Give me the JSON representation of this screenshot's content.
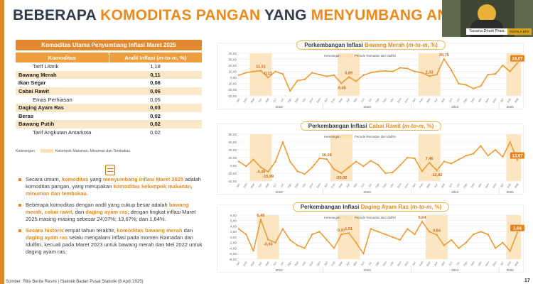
{
  "title": {
    "part1": "BEBERAPA ",
    "part2": "KOMODITAS PANGAN",
    "part3": " YANG ",
    "part4": "MENYUMBANG ANDIL INFLASI"
  },
  "video": {
    "name": "Sasana Dharti Praia",
    "tag": "KEPALA BPS"
  },
  "table": {
    "header": "Komoditas Utama Penyumbang Inflasi Maret 2025",
    "col1": "Komoditas",
    "col2_main": "Andil Inflasi (",
    "col2_unit": "m-to-m",
    "col2_end": ", %)",
    "rows": [
      {
        "name": "Tarif Listrik",
        "value": "1,18",
        "bold": false
      },
      {
        "name": "Bawang Merah",
        "value": "0,11",
        "bold": true
      },
      {
        "name": "Ikan Segar",
        "value": "0,06",
        "bold": true
      },
      {
        "name": "Cabai Rawit",
        "value": "0,06",
        "bold": true
      },
      {
        "name": "Emas Perhiasan",
        "value": "0,05",
        "bold": false
      },
      {
        "name": "Daging Ayam Ras",
        "value": "0,03",
        "bold": true
      },
      {
        "name": "Beras",
        "value": "0,02",
        "bold": true
      },
      {
        "name": "Bawang Putih",
        "value": "0,02",
        "bold": true
      },
      {
        "name": "Tarif Angkutan Antarkota",
        "value": "0,02",
        "bold": false
      }
    ],
    "legend_label": "Keterangan",
    "legend_text": "Kelompok Makanan, Minuman dan Tembakau"
  },
  "bullets": [
    [
      {
        "t": "Secara umum, "
      },
      {
        "t": "komoditas",
        "h": true
      },
      {
        "t": " yang "
      },
      {
        "t": "menyumbang inflasi Maret 2025",
        "h": true
      },
      {
        "t": " adalah komoditas pangan, yang merupakan "
      },
      {
        "t": "komoditas kelompok makanan, minuman dan tembakau.",
        "h": true
      }
    ],
    [
      {
        "t": "Beberapa komoditas dengan andil yang cukup besar adalah "
      },
      {
        "t": "bawang merah",
        "h": true
      },
      {
        "t": ", "
      },
      {
        "t": "cabai rawit",
        "h": true
      },
      {
        "t": ", dan "
      },
      {
        "t": "daging ayam ras",
        "h": true
      },
      {
        "t": "; dengan tingkat inflasi Maret 2025 masing-masing sebesar 24,07%; 13,67%; dan 1,64%."
      }
    ],
    [
      {
        "t": "Secara historis",
        "h": true
      },
      {
        "t": " empat tahun terakhir, "
      },
      {
        "t": "komoditas bawang merah",
        "h": true
      },
      {
        "t": " dan "
      },
      {
        "t": "daging ayam ras",
        "h": true
      },
      {
        "t": " selalu mengalami inflasi pada momen Ramadan dan Idulfitri, kecuali pada Maret 2023 untuk bawang merah dan Mei 2022 untuk daging ayam ras."
      }
    ]
  ],
  "footer": "Sumber: Rilis Berita Resmi | Statistik Badan Pusat Statistik (8 April 2025)",
  "page_number": "17",
  "chart_data": [
    {
      "type": "line",
      "title_prefix": "Perkembangan Inflasi ",
      "title_commodity": "Bawang Merah",
      "title_unit": "m-to-m",
      "title_suffix": ", %)",
      "legend_label": "Keterangan",
      "legend_text": "Periode Ramadan dan Idulfitri",
      "x": [
        "Jan",
        "Feb",
        "Mar",
        "Apr",
        "Mei",
        "Jun",
        "Jul",
        "Agu",
        "Sep",
        "Okt",
        "Nov",
        "Des",
        "Jan",
        "Feb",
        "Mar",
        "Apr",
        "Mei",
        "Jun",
        "Jul",
        "Agu",
        "Sep",
        "Okt",
        "Nov",
        "Des",
        "Jan",
        "Feb",
        "Mar",
        "Apr",
        "Mei",
        "Jun",
        "Jul",
        "Agu",
        "Sep",
        "Okt",
        "Nov",
        "Des",
        "Jan",
        "Feb",
        "Mar"
      ],
      "years": [
        "2022",
        "2023",
        "2024",
        "2025"
      ],
      "ylim": [
        -30,
        40
      ],
      "yticks": [
        "40,00",
        "30,00",
        "20,00",
        "10,00",
        "0,00",
        "-10,00",
        "-20,00",
        "-30,00"
      ],
      "values": [
        4,
        8,
        10,
        11.31,
        0.13,
        10,
        6,
        -22,
        -5,
        -3,
        8,
        5,
        2,
        4,
        -9.45,
        0.89,
        -6,
        4,
        8,
        10,
        11,
        10,
        16,
        15,
        10,
        8,
        2.33,
        5,
        30.75,
        12,
        -10,
        -12,
        -18,
        -14,
        5,
        6,
        20,
        10,
        24.07
      ],
      "labels": [
        {
          "i": 3,
          "text": "11,31"
        },
        {
          "i": 4,
          "text": "0,13"
        },
        {
          "i": 14,
          "text": "-9,45"
        },
        {
          "i": 15,
          "text": "0,89"
        },
        {
          "i": 26,
          "text": "2,33"
        },
        {
          "i": 28,
          "text": "30,75"
        },
        {
          "i": 38,
          "text": "24,07",
          "boxed": true
        }
      ],
      "highlights": [
        [
          2,
          4
        ],
        [
          14,
          16
        ],
        [
          25,
          27
        ],
        [
          37,
          38
        ]
      ]
    },
    {
      "type": "line",
      "title_prefix": "Perkembangan Inflasi ",
      "title_commodity": "Cabai Rawit",
      "title_unit": "m-to-m",
      "title_suffix": ", %)",
      "legend_label": "Keterangan",
      "legend_text": "Periode Ramadan dan Idulfitri",
      "x": [
        "Jan",
        "Feb",
        "Mar",
        "Apr",
        "Mei",
        "Jun",
        "Jul",
        "Agu",
        "Sep",
        "Okt",
        "Nov",
        "Des",
        "Jan",
        "Feb",
        "Mar",
        "Apr",
        "Mei",
        "Jun",
        "Jul",
        "Agu",
        "Sep",
        "Okt",
        "Nov",
        "Des",
        "Jan",
        "Feb",
        "Mar",
        "Apr",
        "Mei",
        "Jun",
        "Jul",
        "Agu",
        "Sep",
        "Okt",
        "Nov",
        "Des",
        "Jan",
        "Feb",
        "Mar"
      ],
      "years": [
        "2022",
        "2023",
        "2024",
        "2025"
      ],
      "ylim": [
        -40,
        80
      ],
      "yticks": [
        "80,00",
        "60,00",
        "40,00",
        "20,00",
        "0,00",
        "-20,00",
        "-40,00"
      ],
      "values": [
        10,
        -2,
        15,
        -4.46,
        -15.99,
        10,
        60,
        10,
        -15,
        -22,
        -5,
        18,
        16.08,
        -10,
        -20.02,
        -5,
        10,
        -2,
        12,
        2,
        -20,
        -18,
        0,
        20,
        18,
        -15,
        7.46,
        -12.82,
        10,
        5,
        15,
        25,
        30,
        50,
        25,
        40,
        22,
        60,
        13.67
      ],
      "labels": [
        {
          "i": 3,
          "text": "-4,46"
        },
        {
          "i": 4,
          "text": "-15,99"
        },
        {
          "i": 12,
          "text": "16,08"
        },
        {
          "i": 14,
          "text": "-20,02"
        },
        {
          "i": 26,
          "text": "7,46"
        },
        {
          "i": 27,
          "text": "-12,82"
        },
        {
          "i": 38,
          "text": "13,67",
          "boxed": true
        }
      ],
      "highlights": [
        [
          2,
          4
        ],
        [
          13,
          15
        ],
        [
          25,
          27
        ],
        [
          37,
          38
        ]
      ]
    },
    {
      "type": "line",
      "title_prefix": "Perkembangan Inflasi ",
      "title_commodity": "Daging Ayam Ras",
      "title_unit": "m-to-m",
      "title_suffix": ", %)",
      "legend_label": "Keterangan",
      "legend_text": "Periode Ramadan dan Idulfitri",
      "x": [
        "Jan",
        "Feb",
        "Mar",
        "Apr",
        "Mei",
        "Jun",
        "Jul",
        "Agu",
        "Sep",
        "Okt",
        "Nov",
        "Des",
        "Jan",
        "Feb",
        "Mar",
        "Apr",
        "Mei",
        "Jun",
        "Jul",
        "Agu",
        "Sep",
        "Okt",
        "Nov",
        "Des",
        "Jan",
        "Feb",
        "Mar",
        "Apr",
        "Mei",
        "Jun",
        "Jul",
        "Agu",
        "Sep",
        "Okt",
        "Nov",
        "Des",
        "Jan",
        "Feb",
        "Mar"
      ],
      "years": [
        "2022",
        "2023",
        "2024",
        "2025"
      ],
      "ylim": [
        -8,
        8
      ],
      "yticks": [
        "8,00",
        "6,00",
        "4,00",
        "2,00",
        "0,00",
        "-2,00",
        "-4,00",
        "-6,00",
        "-8,00"
      ],
      "values": [
        3,
        1,
        -5,
        6.4,
        -0.93,
        -2,
        3,
        -1,
        -3,
        -4,
        1,
        2,
        -1,
        -4,
        0.97,
        1.51,
        -2,
        -6,
        3,
        2,
        1,
        0,
        -1,
        3,
        1,
        5.64,
        2,
        0.84,
        -3,
        -1,
        -4,
        -2,
        1,
        2,
        1,
        -4,
        -2,
        -5,
        1.64
      ],
      "labels": [
        {
          "i": 3,
          "text": "6,40"
        },
        {
          "i": 4,
          "text": "-0,93"
        },
        {
          "i": 14,
          "text": "0,97"
        },
        {
          "i": 15,
          "text": "1,51"
        },
        {
          "i": 25,
          "text": "5,64"
        },
        {
          "i": 27,
          "text": "0,84"
        },
        {
          "i": 38,
          "text": "1,64",
          "boxed": true
        }
      ],
      "highlights": [
        [
          3,
          5
        ],
        [
          14,
          16
        ],
        [
          26,
          28
        ],
        [
          37,
          38
        ]
      ]
    }
  ]
}
